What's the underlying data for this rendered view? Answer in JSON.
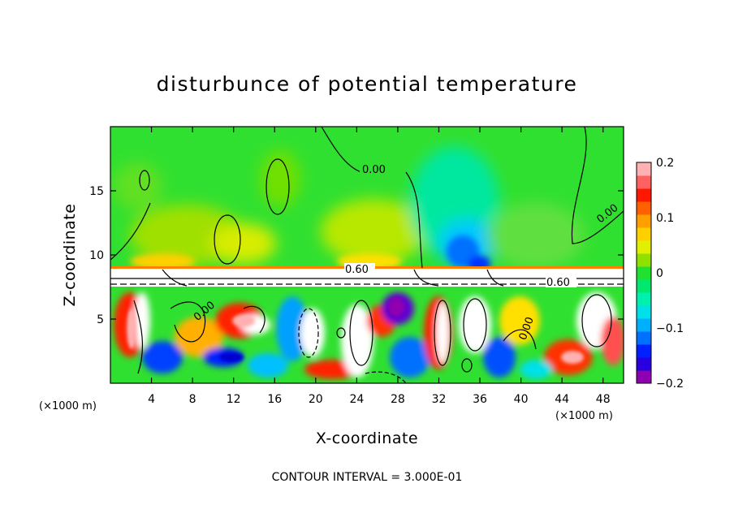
{
  "chart_data": {
    "type": "heatmap",
    "title": "disturbunce of potential temperature",
    "xlabel": "X-coordinate",
    "ylabel": "Z-coordinate",
    "x_unit": "(×1000 m)",
    "z_unit": "(×1000 m)",
    "xlim": [
      0,
      50
    ],
    "ylim": [
      0,
      20
    ],
    "x_ticks": [
      4,
      8,
      12,
      16,
      20,
      24,
      28,
      32,
      36,
      40,
      44,
      48
    ],
    "y_ticks": [
      5,
      10,
      15
    ],
    "colorbar": {
      "range": [
        -0.2,
        0.2
      ],
      "tick_values": [
        0.2,
        0.1,
        0,
        -0.1,
        -0.2
      ],
      "tick_labels": [
        "0.2",
        "0.1",
        "0",
        "−0.1",
        "−0.2"
      ],
      "colors": [
        "#8e00b0",
        "#2800e0",
        "#0020ff",
        "#0070ff",
        "#00b0ff",
        "#00e0e8",
        "#00f0b0",
        "#00e870",
        "#20e030",
        "#90e000",
        "#e0f000",
        "#ffd000",
        "#ffa000",
        "#ff6000",
        "#ff1800",
        "#ff6060",
        "#ffb0b0"
      ]
    },
    "contour_interval_text": "CONTOUR INTERVAL = 3.000E-01",
    "contour_labels": [
      "0.00",
      "0.00",
      "0.60",
      "0.60",
      "0.00",
      "0.00"
    ]
  }
}
